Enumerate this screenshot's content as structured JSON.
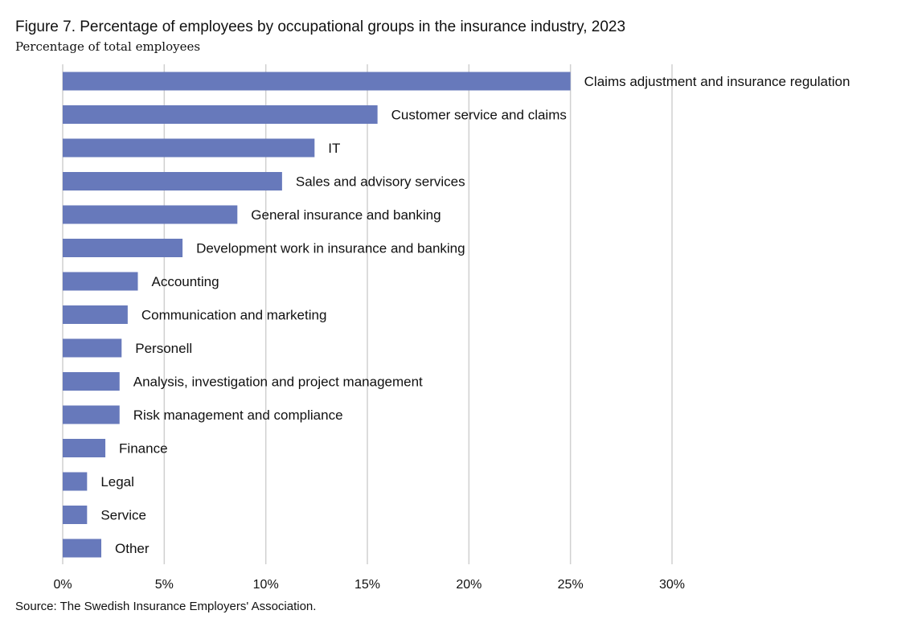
{
  "title": "Figure 7. Percentage of employees by occupational groups in the insurance industry, 2023",
  "subtitle": "Percentage of total employees",
  "source": "Source: The Swedish Insurance Employers' Association.",
  "chart_data": {
    "type": "bar",
    "orientation": "horizontal",
    "title": "Figure 7. Percentage of employees by occupational groups in the insurance industry, 2023",
    "ylabel": "Percentage of total employees",
    "categories": [
      "Claims adjustment and insurance regulation",
      "Customer service and claims",
      "IT",
      "Sales and advisory services",
      "General insurance and banking",
      "Development work in insurance and banking",
      "Accounting",
      "Communication and marketing",
      "Personell",
      "Analysis, investigation and project management",
      "Risk management and compliance",
      "Finance",
      "Legal",
      "Service",
      "Other"
    ],
    "values": [
      25.0,
      15.5,
      12.4,
      10.8,
      8.6,
      5.9,
      3.7,
      3.2,
      2.9,
      2.8,
      2.8,
      2.1,
      1.2,
      1.2,
      1.9
    ],
    "xlim": [
      0,
      30
    ],
    "xticks": [
      0,
      5,
      10,
      15,
      20,
      25,
      30
    ],
    "xtick_labels": [
      "0%",
      "5%",
      "10%",
      "15%",
      "20%",
      "25%",
      "30%"
    ],
    "grid": "vertical",
    "bar_color": "#6779bb",
    "grid_color": "#d0d0d0",
    "data_labels": "category names at bar ends"
  }
}
